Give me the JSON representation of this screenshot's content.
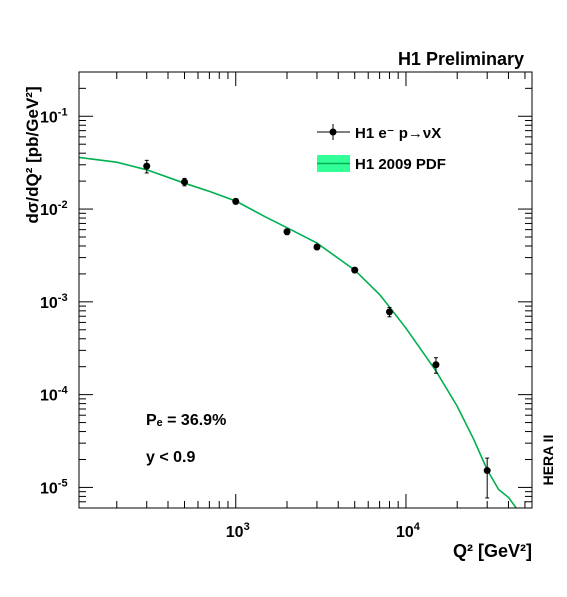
{
  "header": {
    "title": "H1 Preliminary"
  },
  "side_label": "HERA II",
  "chart_data": {
    "type": "scatter",
    "xscale": "log",
    "yscale": "log",
    "xlim": [
      120,
      55000
    ],
    "ylim": [
      6e-06,
      0.3
    ],
    "ylabel": "dσ/dQ² [pb/GeV²]",
    "xlabel": "Q² [GeV²]",
    "x_ticks": [
      {
        "value": 1000,
        "base": "10",
        "exp": "3"
      },
      {
        "value": 10000,
        "base": "10",
        "exp": "4"
      }
    ],
    "y_ticks": [
      {
        "value": 0.1,
        "base": "10",
        "exp": "-1"
      },
      {
        "value": 0.01,
        "base": "10",
        "exp": "-2"
      },
      {
        "value": 0.001,
        "base": "10",
        "exp": "-3"
      },
      {
        "value": 0.0001,
        "base": "10",
        "exp": "-4"
      },
      {
        "value": 1e-05,
        "base": "10",
        "exp": "-5"
      }
    ],
    "legend": {
      "placement": "top-right",
      "entries": [
        {
          "label": "H1 e⁻ p→νX",
          "kind": "marker"
        },
        {
          "label": "H1 2009 PDF",
          "kind": "band"
        }
      ]
    },
    "annotations": [
      {
        "text": "Pₑ = 36.9%"
      },
      {
        "text": "y < 0.9"
      }
    ],
    "series": [
      {
        "name": "H1 e⁻ p→νX",
        "kind": "points",
        "color": "#000000",
        "points": [
          {
            "x": 300,
            "y": 0.029,
            "err_lo": 0.0045,
            "err_hi": 0.0045
          },
          {
            "x": 500,
            "y": 0.0196,
            "err_lo": 0.0018,
            "err_hi": 0.0018
          },
          {
            "x": 1000,
            "y": 0.0121,
            "err_lo": 0.0008,
            "err_hi": 0.0008
          },
          {
            "x": 2000,
            "y": 0.0057,
            "err_lo": 0.0004,
            "err_hi": 0.0004
          },
          {
            "x": 3000,
            "y": 0.0039,
            "err_lo": 0.00025,
            "err_hi": 0.00025
          },
          {
            "x": 5000,
            "y": 0.0022,
            "err_lo": 0.00014,
            "err_hi": 0.00014
          },
          {
            "x": 8000,
            "y": 0.00078,
            "err_lo": 9e-05,
            "err_hi": 9e-05
          },
          {
            "x": 15000,
            "y": 0.00021,
            "err_lo": 4e-05,
            "err_hi": 4e-05
          },
          {
            "x": 30000,
            "y": 1.52e-05,
            "err_lo": 7.5e-06,
            "err_hi": 5.5e-06
          }
        ]
      },
      {
        "name": "H1 2009 PDF",
        "kind": "curve",
        "color": "#00b050",
        "band_color": "#33ff99",
        "x": [
          120,
          200,
          300,
          500,
          700,
          1000,
          1500,
          2000,
          3000,
          5000,
          7000,
          8000,
          10000,
          15000,
          20000,
          25000,
          30000,
          35000,
          40000,
          46000
        ],
        "y": [
          0.036,
          0.032,
          0.0265,
          0.019,
          0.0155,
          0.0122,
          0.0082,
          0.0063,
          0.0043,
          0.0022,
          0.0012,
          0.00088,
          0.00052,
          0.00018,
          7.5e-05,
          3.3e-05,
          1.55e-05,
          9.5e-06,
          7.8e-06,
          5.5e-06
        ]
      }
    ]
  }
}
